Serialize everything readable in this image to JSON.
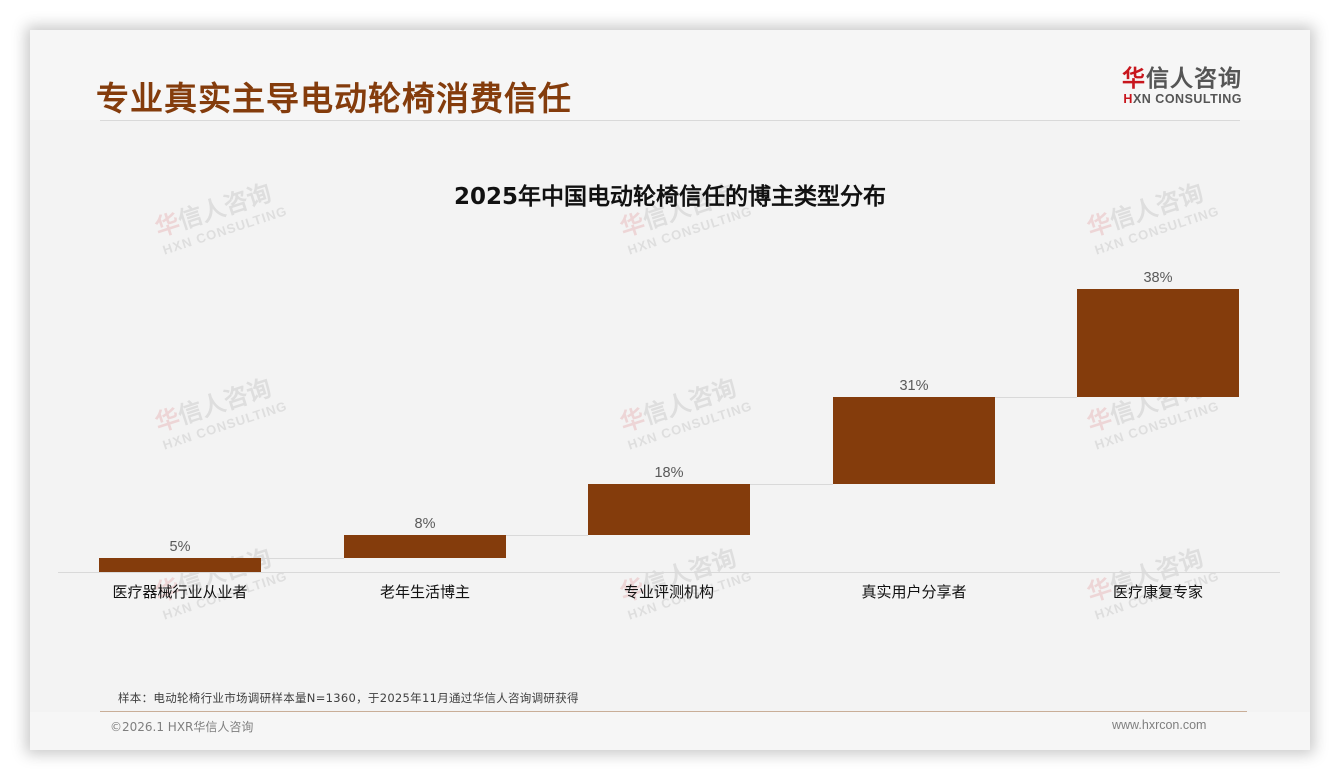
{
  "header": {
    "title": "专业真实主导电动轮椅消费信任",
    "logo": {
      "cn_first": "华",
      "cn_rest": "信人咨询",
      "en_first": "H",
      "en_rest": "XN CONSULTING"
    }
  },
  "watermark": {
    "cn_first": "华",
    "cn_rest": "信人咨询",
    "en": "HXN CONSULTING"
  },
  "chart_data": {
    "type": "bar",
    "subtype": "waterfall",
    "title": "2025年中国电动轮椅信任的博主类型分布",
    "categories": [
      "医疗器械行业从业者",
      "老年生活博主",
      "专业评测机构",
      "真实用户分享者",
      "医疗康复专家"
    ],
    "values": [
      5,
      8,
      18,
      31,
      38
    ],
    "data_labels": [
      "5%",
      "8%",
      "18%",
      "31%",
      "38%"
    ],
    "cumulative_start": [
      0,
      5,
      13,
      31,
      62
    ],
    "cumulative_end": [
      5,
      13,
      31,
      62,
      100
    ],
    "unit": "%",
    "xlabel": "",
    "ylabel": "",
    "ylim": [
      0,
      100
    ],
    "grid": false,
    "legend": "none",
    "bar_color": "#843c0c",
    "connector_color": "#d9d9d9"
  },
  "footer": {
    "source_note": "样本：电动轮椅行业市场调研样本量N=1360，于2025年11月通过华信人咨询调研获得",
    "copyright": "©2026.1 HXR华信人咨询",
    "website": "www.hxrcon.com"
  },
  "colors": {
    "title": "#843c0c",
    "bar": "#843c0c",
    "logo_red": "#c8161d",
    "background": "#f3f3f3"
  }
}
